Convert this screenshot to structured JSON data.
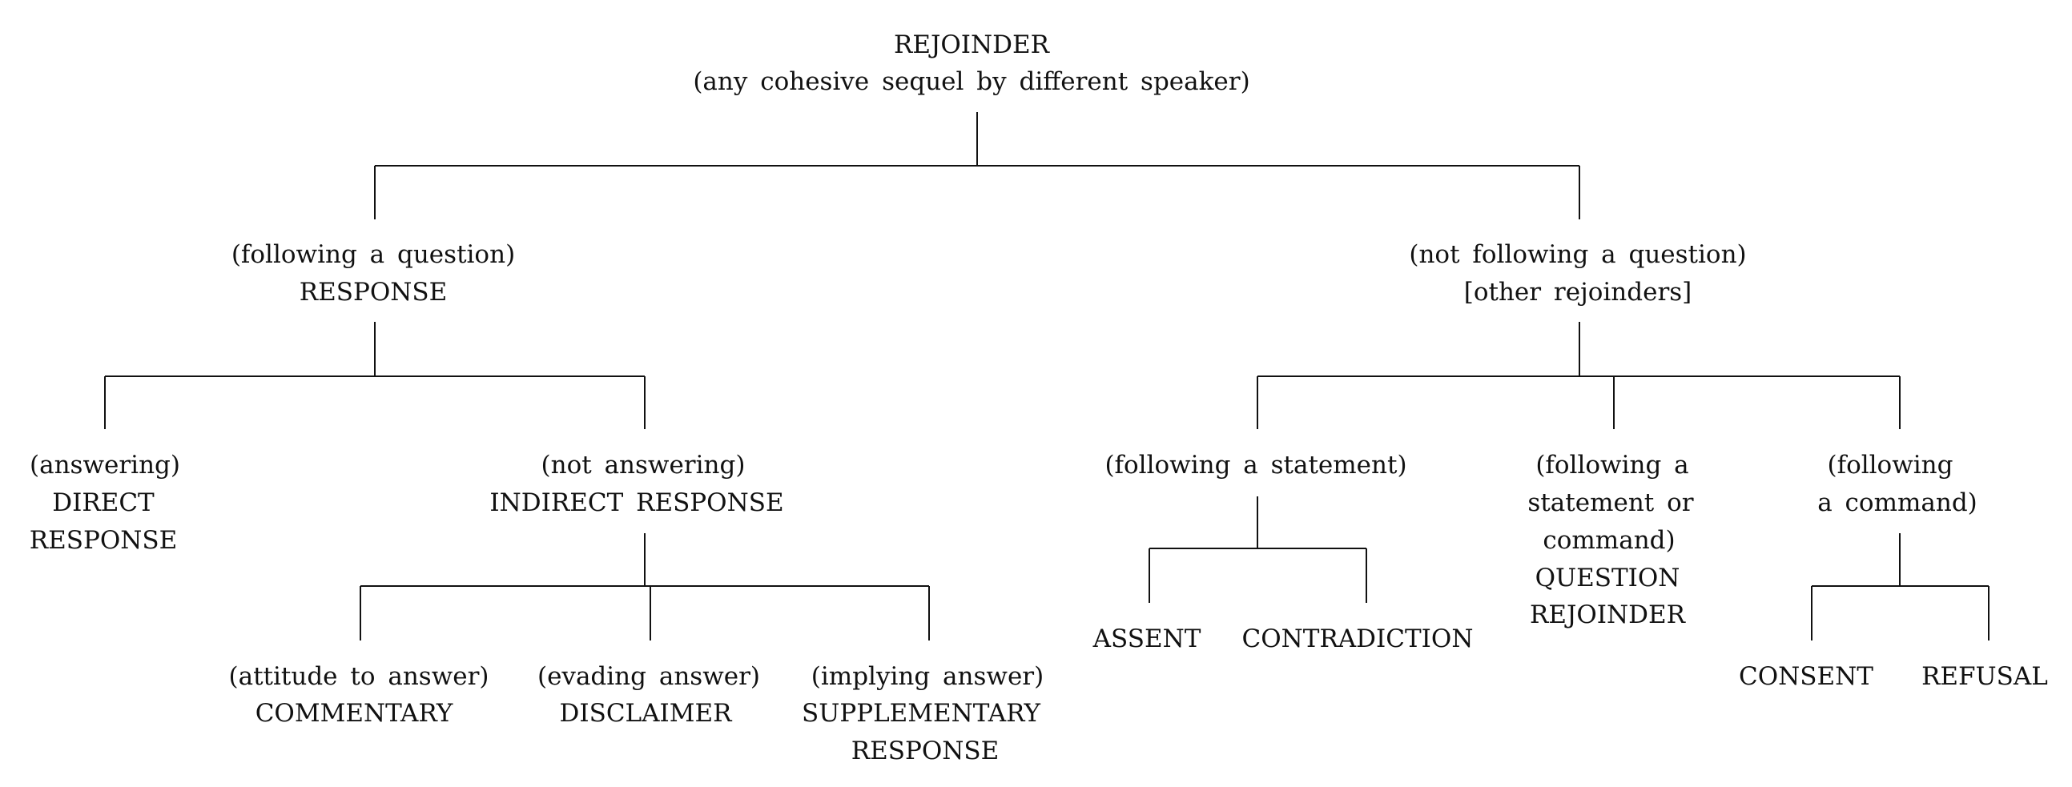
{
  "root": {
    "title": "REJOINDER",
    "subtitle": "(any cohesive sequel by different speaker)"
  },
  "response": {
    "condition": "(following a question)",
    "label": "RESPONSE",
    "direct": {
      "condition": "(answering)",
      "label_line1": "DIRECT",
      "label_line2": "RESPONSE"
    },
    "indirect": {
      "condition": "(not answering)",
      "label": "INDIRECT RESPONSE",
      "commentary": {
        "condition": "(attitude to answer)",
        "label": "COMMENTARY"
      },
      "disclaimer": {
        "condition": "(evading answer)",
        "label": "DISCLAIMER"
      },
      "supplementary": {
        "condition": "(implying answer)",
        "label_line1": "SUPPLEMENTARY",
        "label_line2": "RESPONSE"
      }
    }
  },
  "other": {
    "condition": "(not following a question)",
    "label": "[other rejoinders]",
    "statement": {
      "condition": "(following a statement)",
      "assent": "ASSENT",
      "contradiction": "CONTRADICTION"
    },
    "question_rejoinder": {
      "condition_line1": "(following a",
      "condition_line2": "statement or",
      "condition_line3": "command)",
      "label_line1": "QUESTION",
      "label_line2": "REJOINDER"
    },
    "command": {
      "condition_line1": "(following",
      "condition_line2": "a command)",
      "consent": "CONSENT",
      "refusal": "REFUSAL"
    }
  }
}
